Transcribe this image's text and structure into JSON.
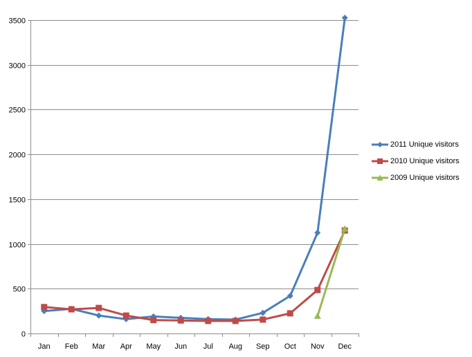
{
  "chart_data": {
    "type": "line",
    "title": "",
    "xlabel": "",
    "ylabel": "",
    "categories": [
      "Jan",
      "Feb",
      "Mar",
      "Apr",
      "May",
      "Jun",
      "Jul",
      "Aug",
      "Sep",
      "Oct",
      "Nov",
      "Dec"
    ],
    "ylim": [
      0,
      3500
    ],
    "yticks": [
      0,
      500,
      1000,
      1500,
      2000,
      2500,
      3000,
      3500
    ],
    "ytick_labels": [
      "0",
      "500",
      "1000",
      "1500",
      "2000",
      "2500",
      "3000",
      "3500"
    ],
    "grid": "horizontal",
    "legend_position": "right",
    "series": [
      {
        "name": "2011 Unique visitors",
        "color": "#4a7ebb",
        "marker": "diamond",
        "values": [
          250,
          275,
          200,
          160,
          190,
          175,
          160,
          155,
          230,
          420,
          1125,
          3525
        ]
      },
      {
        "name": "2010 Unique visitors",
        "color": "#be4b48",
        "marker": "square",
        "values": [
          295,
          270,
          285,
          200,
          150,
          145,
          140,
          140,
          155,
          225,
          485,
          1150
        ]
      },
      {
        "name": "2009 Unique visitors",
        "color": "#98b954",
        "marker": "triangle",
        "values": [
          null,
          null,
          null,
          null,
          null,
          null,
          null,
          null,
          null,
          null,
          195,
          1170
        ]
      }
    ]
  }
}
